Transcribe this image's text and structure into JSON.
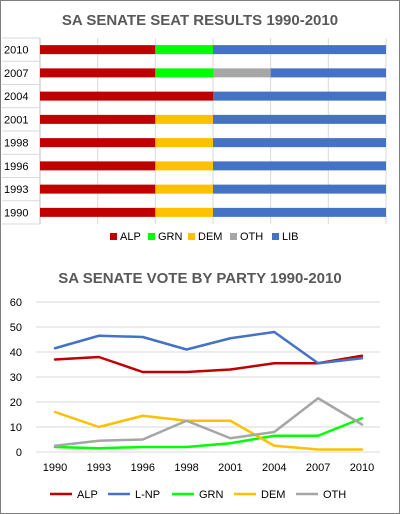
{
  "chart_data": [
    {
      "type": "bar",
      "orientation": "horizontal",
      "stacked": true,
      "title": "SA SENATE SEAT RESULTS 1990-2010",
      "categories": [
        "2010",
        "2007",
        "2004",
        "2001",
        "1998",
        "1996",
        "1993",
        "1990"
      ],
      "total": 6,
      "series": [
        {
          "name": "ALP",
          "color": "#c00000",
          "values": [
            2,
            2,
            3,
            2,
            2,
            2,
            2,
            2
          ]
        },
        {
          "name": "GRN",
          "color": "#00ff00",
          "values": [
            1,
            1,
            0,
            0,
            0,
            0,
            0,
            0
          ]
        },
        {
          "name": "DEM",
          "color": "#ffc000",
          "values": [
            0,
            0,
            0,
            1,
            1,
            1,
            1,
            1
          ]
        },
        {
          "name": "OTH",
          "color": "#a6a6a6",
          "values": [
            0,
            1,
            0,
            0,
            0,
            0,
            0,
            0
          ]
        },
        {
          "name": "LIB",
          "color": "#4472c4",
          "values": [
            3,
            2,
            3,
            3,
            3,
            3,
            3,
            3
          ]
        }
      ],
      "legend_position": "bottom",
      "grid": true
    },
    {
      "type": "line",
      "title": "SA SENATE VOTE BY PARTY 1990-2010",
      "x": [
        "1990",
        "1993",
        "1996",
        "1998",
        "2001",
        "2004",
        "2007",
        "2010"
      ],
      "ylim": [
        0,
        60
      ],
      "yticks": [
        "0",
        "10",
        "20",
        "30",
        "40",
        "50",
        "60"
      ],
      "series": [
        {
          "name": "ALP",
          "color": "#c00000",
          "values": [
            37,
            38,
            32,
            32,
            33,
            35.5,
            35.5,
            38.5
          ]
        },
        {
          "name": "L-NP",
          "color": "#4472c4",
          "values": [
            41.5,
            46.5,
            46,
            41,
            45.5,
            48,
            35.5,
            37.5
          ]
        },
        {
          "name": "GRN",
          "color": "#00ff00",
          "values": [
            2,
            1.5,
            2,
            2,
            3.5,
            6.5,
            6.5,
            13.5
          ]
        },
        {
          "name": "DEM",
          "color": "#ffc000",
          "values": [
            16,
            10,
            14.5,
            12.5,
            12.5,
            2.5,
            1,
            1
          ]
        },
        {
          "name": "OTH",
          "color": "#a6a6a6",
          "values": [
            2.5,
            4.5,
            5,
            12.5,
            5.5,
            8,
            21.5,
            11
          ]
        }
      ],
      "legend_position": "bottom",
      "grid": true
    }
  ]
}
